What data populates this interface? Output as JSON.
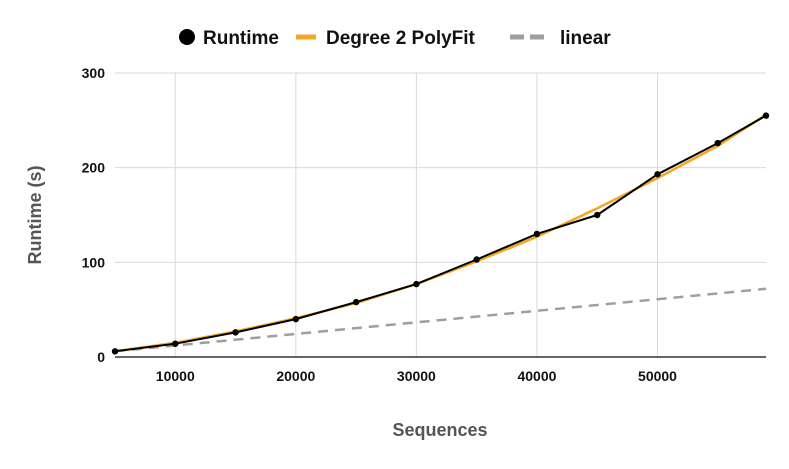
{
  "chart_data": {
    "type": "line",
    "title": "",
    "xlabel": "Sequences",
    "ylabel": "Runtime (s)",
    "xlim": [
      5000,
      59000
    ],
    "ylim": [
      0,
      300
    ],
    "x_ticks": [
      10000,
      20000,
      30000,
      40000,
      50000
    ],
    "y_ticks": [
      0,
      100,
      200,
      300
    ],
    "grid": true,
    "legend_position": "top",
    "series": [
      {
        "name": "Runtime",
        "style": "line-with-markers",
        "color": "#000000",
        "x": [
          5000,
          10000,
          15000,
          20000,
          25000,
          30000,
          35000,
          40000,
          45000,
          50000,
          55000,
          59000
        ],
        "y": [
          6,
          14,
          26,
          40,
          58,
          77,
          103,
          130,
          150,
          193,
          226,
          255
        ]
      },
      {
        "name": "Degree 2 PolyFit",
        "style": "line",
        "color": "#F5A623",
        "x": [
          5000,
          10000,
          15000,
          20000,
          25000,
          30000,
          35000,
          40000,
          45000,
          50000,
          55000,
          59000
        ],
        "y": [
          6,
          15,
          27,
          41,
          57,
          77,
          101,
          127,
          157,
          189,
          223,
          256
        ]
      },
      {
        "name": "linear",
        "style": "dashed",
        "color": "#9E9E9E",
        "x": [
          5000,
          59000
        ],
        "y": [
          6,
          72
        ]
      }
    ]
  }
}
